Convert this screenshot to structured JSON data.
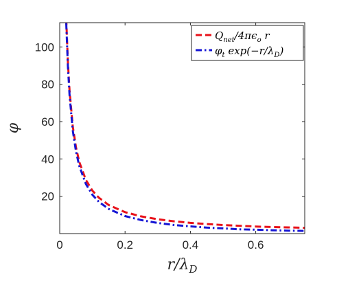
{
  "chart_data": {
    "type": "line",
    "title": "",
    "xlabel": "r/λ_D",
    "ylabel": "φ",
    "xlim": [
      0,
      0.75
    ],
    "ylim": [
      0,
      113
    ],
    "xticks": [
      0,
      0.2,
      0.4,
      0.6
    ],
    "xtick_labels": [
      "0",
      "0.2",
      "0.4",
      "0.6"
    ],
    "yticks": [
      20,
      40,
      60,
      80,
      100
    ],
    "ytick_labels": [
      "20",
      "40",
      "60",
      "80",
      "100"
    ],
    "grid": false,
    "box": true,
    "legend_position": "top-right",
    "series": [
      {
        "name": "Q_net/4πϵ_o r",
        "color": "#e8121a",
        "dash": "dashed",
        "x": [
          0.02,
          0.025,
          0.03,
          0.04,
          0.05,
          0.06,
          0.08,
          0.1,
          0.12,
          0.15,
          0.2,
          0.25,
          0.3,
          0.35,
          0.4,
          0.45,
          0.5,
          0.55,
          0.6,
          0.65,
          0.7,
          0.75
        ],
        "values": [
          115,
          92,
          76.7,
          57.5,
          46,
          38.3,
          28.8,
          23,
          19.2,
          15.3,
          11.5,
          9.2,
          7.7,
          6.6,
          5.75,
          5.1,
          4.6,
          4.2,
          3.8,
          3.5,
          3.3,
          3.1
        ]
      },
      {
        "name": "φ_t exp(−r/λ_D)",
        "color": "#1515d4",
        "dash": "dashdot",
        "x": [
          0.02,
          0.025,
          0.03,
          0.04,
          0.05,
          0.06,
          0.08,
          0.1,
          0.12,
          0.15,
          0.2,
          0.25,
          0.3,
          0.35,
          0.4,
          0.45,
          0.5,
          0.55,
          0.6,
          0.65,
          0.7,
          0.75
        ],
        "values": [
          112.7,
          89.8,
          74.4,
          55.3,
          43.8,
          36.1,
          26.6,
          20.8,
          17.0,
          13.2,
          9.4,
          7.2,
          5.7,
          4.6,
          3.85,
          3.2,
          2.8,
          2.3,
          2.1,
          1.8,
          1.6,
          1.45
        ]
      }
    ]
  }
}
